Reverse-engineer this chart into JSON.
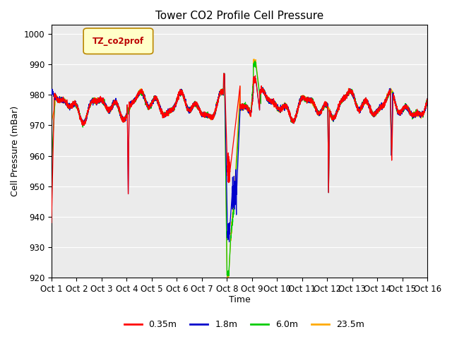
{
  "title": "Tower CO2 Profile Cell Pressure",
  "ylabel": "Cell Pressure (mBar)",
  "xlabel": "Time",
  "ylim": [
    920,
    1003
  ],
  "xlim": [
    0,
    15
  ],
  "xtick_labels": [
    "Oct 1",
    "Oct 2",
    "Oct 3",
    "Oct 4",
    "Oct 5",
    "Oct 6",
    "Oct 7",
    "Oct 8",
    "Oct 9",
    "Oct 10",
    "Oct 11",
    "Oct 12",
    "Oct 13",
    "Oct 14",
    "Oct 15",
    "Oct 16"
  ],
  "ytick_values": [
    920,
    930,
    940,
    950,
    960,
    970,
    980,
    990,
    1000
  ],
  "colors": {
    "red": "#ff0000",
    "blue": "#0000cc",
    "green": "#00cc00",
    "orange": "#ffaa00"
  },
  "legend_label": "TZ_co2prof",
  "legend_items": [
    "0.35m",
    "1.8m",
    "6.0m",
    "23.5m"
  ],
  "bg_color": "#ebebeb",
  "title_fontsize": 11,
  "axis_fontsize": 9,
  "tick_fontsize": 8.5
}
